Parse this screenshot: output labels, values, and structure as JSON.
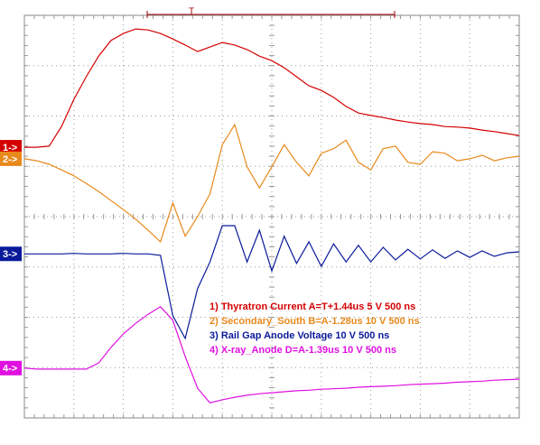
{
  "chart_data": {
    "type": "line",
    "trigger_label": "T",
    "xlim": [
      0,
      10
    ],
    "ylim": [
      -4,
      4
    ],
    "grid": true,
    "x": [
      0,
      0.25,
      0.5,
      0.75,
      1,
      1.25,
      1.5,
      1.75,
      2,
      2.25,
      2.5,
      2.75,
      3,
      3.25,
      3.5,
      3.75,
      4,
      4.25,
      4.5,
      4.75,
      5,
      5.25,
      5.5,
      5.75,
      6,
      6.25,
      6.5,
      6.75,
      7,
      7.25,
      7.5,
      7.75,
      8,
      8.25,
      8.5,
      8.75,
      9,
      9.25,
      9.5,
      9.75,
      10
    ],
    "series": [
      {
        "marker": "1->",
        "name": "1) Thyratron Current A=T+1.44us  5  V   500 ns",
        "color": "#d40000",
        "values": [
          1.38,
          1.38,
          1.4,
          1.79,
          2.33,
          2.78,
          3.19,
          3.5,
          3.64,
          3.73,
          3.71,
          3.64,
          3.53,
          3.41,
          3.28,
          3.37,
          3.46,
          3.41,
          3.32,
          3.19,
          3.1,
          2.96,
          2.78,
          2.6,
          2.51,
          2.37,
          2.19,
          2.06,
          2.01,
          1.97,
          1.92,
          1.88,
          1.85,
          1.83,
          1.79,
          1.78,
          1.76,
          1.72,
          1.69,
          1.65,
          1.61
        ]
      },
      {
        "marker": "2->",
        "name": "2) Secondary_South B=A-1.28us  10  V   500 ns",
        "color": "#e8891c",
        "values": [
          1.15,
          1.11,
          1.04,
          0.93,
          0.81,
          0.66,
          0.5,
          0.32,
          0.14,
          -0.05,
          -0.27,
          -0.5,
          0.27,
          -0.39,
          0.0,
          0.45,
          1.43,
          1.83,
          0.99,
          0.57,
          0.99,
          1.43,
          1.08,
          0.81,
          1.26,
          1.35,
          1.52,
          1.08,
          0.93,
          1.35,
          1.4,
          1.08,
          1.04,
          1.29,
          1.26,
          1.11,
          1.15,
          1.22,
          1.11,
          1.17,
          1.2
        ]
      },
      {
        "marker": "3->",
        "name": "3) Rail Gap Anode Voltage  10  V   500 ns",
        "color": "#0a1a9a",
        "values": [
          -0.74,
          -0.74,
          -0.74,
          -0.74,
          -0.73,
          -0.74,
          -0.74,
          -0.74,
          -0.73,
          -0.74,
          -0.74,
          -0.77,
          -1.97,
          -2.42,
          -1.43,
          -0.9,
          -0.18,
          -0.18,
          -0.9,
          -0.27,
          -1.08,
          -0.39,
          -0.93,
          -0.5,
          -0.99,
          -0.54,
          -0.9,
          -0.57,
          -0.9,
          -0.61,
          -0.86,
          -0.65,
          -0.84,
          -0.66,
          -0.83,
          -0.68,
          -0.81,
          -0.68,
          -0.79,
          -0.72,
          -0.7
        ]
      },
      {
        "marker": "4->",
        "name": "4) X-ray_Anode D=A-1.39us  10  V   500 ns",
        "color": "#e010e0",
        "values": [
          -3.01,
          -3.03,
          -3.03,
          -3.03,
          -3.03,
          -3.03,
          -2.91,
          -2.6,
          -2.33,
          -2.12,
          -1.94,
          -1.79,
          -2.06,
          -2.78,
          -3.41,
          -3.7,
          -3.64,
          -3.59,
          -3.55,
          -3.52,
          -3.5,
          -3.48,
          -3.46,
          -3.45,
          -3.43,
          -3.42,
          -3.41,
          -3.39,
          -3.38,
          -3.37,
          -3.36,
          -3.34,
          -3.33,
          -3.32,
          -3.31,
          -3.29,
          -3.28,
          -3.27,
          -3.25,
          -3.24,
          -3.23
        ]
      }
    ]
  }
}
